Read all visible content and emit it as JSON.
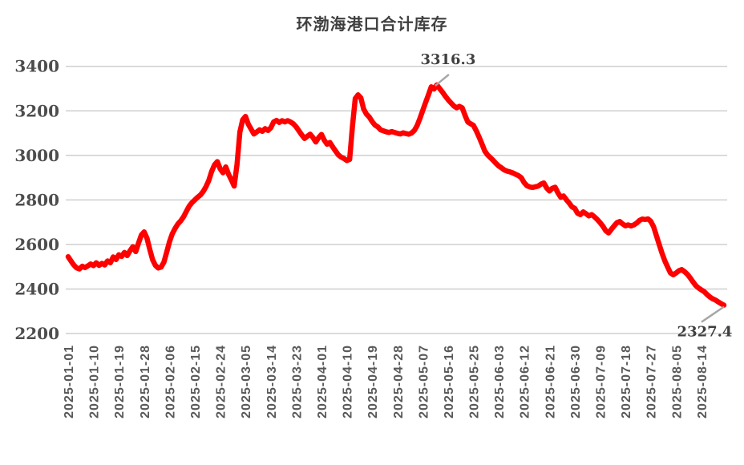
{
  "title": "环渤海港口合计库存",
  "colors": {
    "line": "#fe0000",
    "gridline": "#cfcfcf",
    "axis_label": "#595959",
    "y_label": "#4d4d4d",
    "annotation_text": "#3f3f3f",
    "callout_line": "#a6a6a6",
    "background": "#ffffff"
  },
  "chart_data": {
    "type": "line",
    "title": "环渤海港口合计库存",
    "xlabel": "",
    "ylabel": "",
    "ylim": [
      2200,
      3400
    ],
    "y_ticks": [
      3400,
      3200,
      3000,
      2800,
      2600,
      2400,
      2200
    ],
    "grid": "horizontal",
    "legend": "none",
    "start_date": "2025-01-01",
    "end_date": "2025-08-22",
    "frequency": "daily",
    "x_tick_labels": [
      "2025-01-01",
      "2025-01-10",
      "2025-01-19",
      "2025-01-28",
      "2025-02-06",
      "2025-02-15",
      "2025-02-24",
      "2025-03-05",
      "2025-03-14",
      "2025-03-23",
      "2025-04-01",
      "2025-04-10",
      "2025-04-19",
      "2025-04-28",
      "2025-05-07",
      "2025-05-16",
      "2025-05-25",
      "2025-06-03",
      "2025-06-12",
      "2025-06-21",
      "2025-06-30",
      "2025-07-09",
      "2025-07-18",
      "2025-07-27",
      "2025-08-05",
      "2025-08-14"
    ],
    "values": [
      2545,
      2526,
      2508,
      2495,
      2490,
      2502,
      2496,
      2504,
      2512,
      2505,
      2518,
      2506,
      2515,
      2508,
      2526,
      2518,
      2544,
      2532,
      2554,
      2546,
      2564,
      2550,
      2572,
      2590,
      2568,
      2606,
      2642,
      2656,
      2628,
      2578,
      2532,
      2506,
      2494,
      2498,
      2520,
      2565,
      2612,
      2648,
      2672,
      2692,
      2706,
      2724,
      2748,
      2772,
      2788,
      2800,
      2812,
      2822,
      2838,
      2860,
      2888,
      2928,
      2958,
      2972,
      2940,
      2922,
      2948,
      2915,
      2890,
      2862,
      2958,
      3105,
      3160,
      3175,
      3140,
      3118,
      3096,
      3105,
      3115,
      3108,
      3120,
      3112,
      3124,
      3150,
      3157,
      3148,
      3156,
      3150,
      3156,
      3150,
      3142,
      3128,
      3110,
      3092,
      3076,
      3086,
      3095,
      3080,
      3060,
      3080,
      3094,
      3068,
      3050,
      3058,
      3038,
      3020,
      3002,
      2992,
      2986,
      2977,
      2982,
      3130,
      3255,
      3272,
      3258,
      3208,
      3185,
      3172,
      3152,
      3136,
      3128,
      3115,
      3110,
      3106,
      3103,
      3107,
      3103,
      3099,
      3096,
      3101,
      3098,
      3095,
      3100,
      3112,
      3134,
      3166,
      3202,
      3238,
      3272,
      3308,
      3298,
      3316.3,
      3300,
      3284,
      3266,
      3250,
      3236,
      3222,
      3214,
      3220,
      3214,
      3180,
      3150,
      3142,
      3135,
      3110,
      3082,
      3052,
      3020,
      3002,
      2990,
      2978,
      2964,
      2952,
      2944,
      2934,
      2929,
      2926,
      2921,
      2915,
      2909,
      2900,
      2878,
      2864,
      2858,
      2856,
      2859,
      2862,
      2871,
      2876,
      2854,
      2840,
      2852,
      2857,
      2832,
      2812,
      2818,
      2801,
      2786,
      2769,
      2762,
      2740,
      2734,
      2746,
      2738,
      2728,
      2734,
      2724,
      2712,
      2698,
      2682,
      2662,
      2652,
      2668,
      2684,
      2698,
      2703,
      2692,
      2684,
      2688,
      2683,
      2688,
      2696,
      2708,
      2714,
      2712,
      2715,
      2704,
      2680,
      2640,
      2600,
      2560,
      2526,
      2498,
      2472,
      2464,
      2472,
      2482,
      2487,
      2478,
      2466,
      2450,
      2432,
      2415,
      2404,
      2396,
      2388,
      2375,
      2364,
      2356,
      2350,
      2342,
      2334,
      2327.4
    ],
    "annotations": [
      {
        "label": "3316.3",
        "point_index": 131,
        "value": 3316.3
      },
      {
        "label": "2327.4",
        "point_index": 233,
        "value": 2327.4
      }
    ]
  }
}
